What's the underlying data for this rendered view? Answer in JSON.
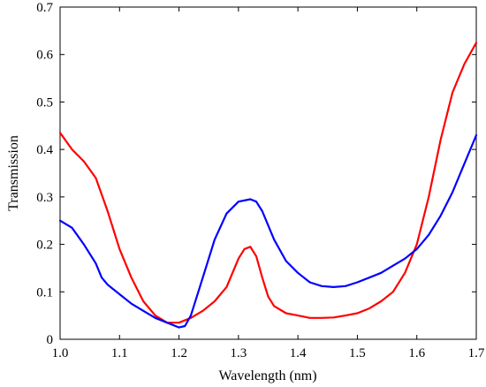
{
  "chart_data": {
    "type": "line",
    "title": "",
    "xlabel": "Wavelength (nm)",
    "ylabel": "Transmission",
    "xlim": [
      1.0,
      1.7
    ],
    "ylim": [
      0,
      0.7
    ],
    "xticks": [
      "1.0",
      "1.1",
      "1.2",
      "1.3",
      "1.4",
      "1.5",
      "1.6",
      "1.7"
    ],
    "yticks": [
      "0",
      "0.1",
      "0.2",
      "0.3",
      "0.4",
      "0.5",
      "0.6",
      "0.7"
    ],
    "grid": false,
    "legend": "none",
    "series": [
      {
        "color": "#ff0000",
        "x": [
          1.0,
          1.02,
          1.04,
          1.06,
          1.08,
          1.1,
          1.12,
          1.14,
          1.16,
          1.18,
          1.2,
          1.22,
          1.24,
          1.26,
          1.28,
          1.3,
          1.31,
          1.32,
          1.33,
          1.34,
          1.35,
          1.36,
          1.38,
          1.4,
          1.42,
          1.44,
          1.46,
          1.48,
          1.5,
          1.52,
          1.54,
          1.56,
          1.58,
          1.6,
          1.62,
          1.64,
          1.66,
          1.68,
          1.7
        ],
        "y": [
          0.435,
          0.4,
          0.375,
          0.34,
          0.27,
          0.19,
          0.13,
          0.08,
          0.05,
          0.035,
          0.035,
          0.045,
          0.06,
          0.08,
          0.11,
          0.17,
          0.19,
          0.195,
          0.175,
          0.13,
          0.09,
          0.07,
          0.055,
          0.05,
          0.045,
          0.045,
          0.046,
          0.05,
          0.055,
          0.065,
          0.08,
          0.1,
          0.14,
          0.2,
          0.3,
          0.42,
          0.52,
          0.58,
          0.625
        ]
      },
      {
        "color": "#0000ff",
        "x": [
          1.0,
          1.02,
          1.04,
          1.06,
          1.07,
          1.08,
          1.1,
          1.12,
          1.14,
          1.16,
          1.18,
          1.2,
          1.21,
          1.22,
          1.24,
          1.26,
          1.28,
          1.3,
          1.32,
          1.33,
          1.34,
          1.36,
          1.38,
          1.4,
          1.42,
          1.44,
          1.46,
          1.48,
          1.5,
          1.52,
          1.54,
          1.56,
          1.58,
          1.6,
          1.62,
          1.64,
          1.66,
          1.68,
          1.7
        ],
        "y": [
          0.25,
          0.235,
          0.2,
          0.16,
          0.13,
          0.115,
          0.095,
          0.075,
          0.06,
          0.045,
          0.035,
          0.025,
          0.028,
          0.05,
          0.13,
          0.21,
          0.265,
          0.29,
          0.295,
          0.29,
          0.27,
          0.21,
          0.165,
          0.14,
          0.12,
          0.112,
          0.11,
          0.112,
          0.12,
          0.13,
          0.14,
          0.155,
          0.17,
          0.19,
          0.22,
          0.26,
          0.31,
          0.37,
          0.43
        ]
      }
    ]
  }
}
